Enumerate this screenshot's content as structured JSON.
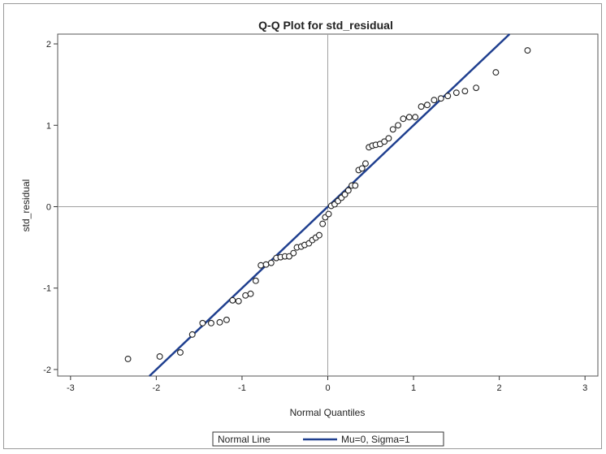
{
  "chart_data": {
    "type": "scatter",
    "title": "Q-Q Plot for std_residual",
    "xlabel": "Normal Quantiles",
    "ylabel": "std_residual",
    "xlim": [
      -3.15,
      3.15
    ],
    "ylim": [
      -2.08,
      2.12
    ],
    "xticks": [
      -3,
      -2,
      -1,
      0,
      1,
      2,
      3
    ],
    "yticks": [
      -2,
      -1,
      0,
      1,
      2
    ],
    "grid": false,
    "reference_lines": {
      "x": 0,
      "y": 0
    },
    "legend": {
      "position": "bottom",
      "title": "Normal Line",
      "entries": [
        {
          "label": "Mu=0, Sigma=1",
          "color": "#1f3f8f"
        }
      ]
    },
    "fit_line": {
      "intercept": 0,
      "slope": 1,
      "color": "#1f3f8f"
    },
    "colors": {
      "points": "#222222",
      "line": "#1f3f8f",
      "reference": "#a0a0a0"
    },
    "points": [
      [
        -2.33,
        -1.87
      ],
      [
        -1.96,
        -1.84
      ],
      [
        -1.72,
        -1.79
      ],
      [
        -1.58,
        -1.57
      ],
      [
        -1.46,
        -1.43
      ],
      [
        -1.36,
        -1.43
      ],
      [
        -1.26,
        -1.42
      ],
      [
        -1.18,
        -1.39
      ],
      [
        -1.11,
        -1.15
      ],
      [
        -1.04,
        -1.16
      ],
      [
        -0.96,
        -1.09
      ],
      [
        -0.9,
        -1.07
      ],
      [
        -0.84,
        -0.91
      ],
      [
        -0.78,
        -0.72
      ],
      [
        -0.72,
        -0.71
      ],
      [
        -0.66,
        -0.69
      ],
      [
        -0.6,
        -0.63
      ],
      [
        -0.55,
        -0.62
      ],
      [
        -0.5,
        -0.61
      ],
      [
        -0.45,
        -0.61
      ],
      [
        -0.4,
        -0.57
      ],
      [
        -0.36,
        -0.5
      ],
      [
        -0.31,
        -0.49
      ],
      [
        -0.27,
        -0.47
      ],
      [
        -0.22,
        -0.45
      ],
      [
        -0.18,
        -0.41
      ],
      [
        -0.14,
        -0.38
      ],
      [
        -0.1,
        -0.35
      ],
      [
        -0.06,
        -0.21
      ],
      [
        -0.03,
        -0.13
      ],
      [
        0.01,
        -0.09
      ],
      [
        0.04,
        0.01
      ],
      [
        0.08,
        0.03
      ],
      [
        0.12,
        0.07
      ],
      [
        0.16,
        0.11
      ],
      [
        0.2,
        0.15
      ],
      [
        0.24,
        0.2
      ],
      [
        0.28,
        0.26
      ],
      [
        0.32,
        0.26
      ],
      [
        0.36,
        0.45
      ],
      [
        0.4,
        0.47
      ],
      [
        0.44,
        0.53
      ],
      [
        0.48,
        0.73
      ],
      [
        0.52,
        0.75
      ],
      [
        0.56,
        0.76
      ],
      [
        0.61,
        0.77
      ],
      [
        0.66,
        0.8
      ],
      [
        0.71,
        0.84
      ],
      [
        0.76,
        0.95
      ],
      [
        0.82,
        1.0
      ],
      [
        0.88,
        1.08
      ],
      [
        0.95,
        1.1
      ],
      [
        1.02,
        1.1
      ],
      [
        1.09,
        1.23
      ],
      [
        1.16,
        1.25
      ],
      [
        1.24,
        1.31
      ],
      [
        1.32,
        1.33
      ],
      [
        1.4,
        1.36
      ],
      [
        1.5,
        1.4
      ],
      [
        1.6,
        1.42
      ],
      [
        1.73,
        1.46
      ],
      [
        1.96,
        1.65
      ],
      [
        2.33,
        1.92
      ]
    ]
  }
}
